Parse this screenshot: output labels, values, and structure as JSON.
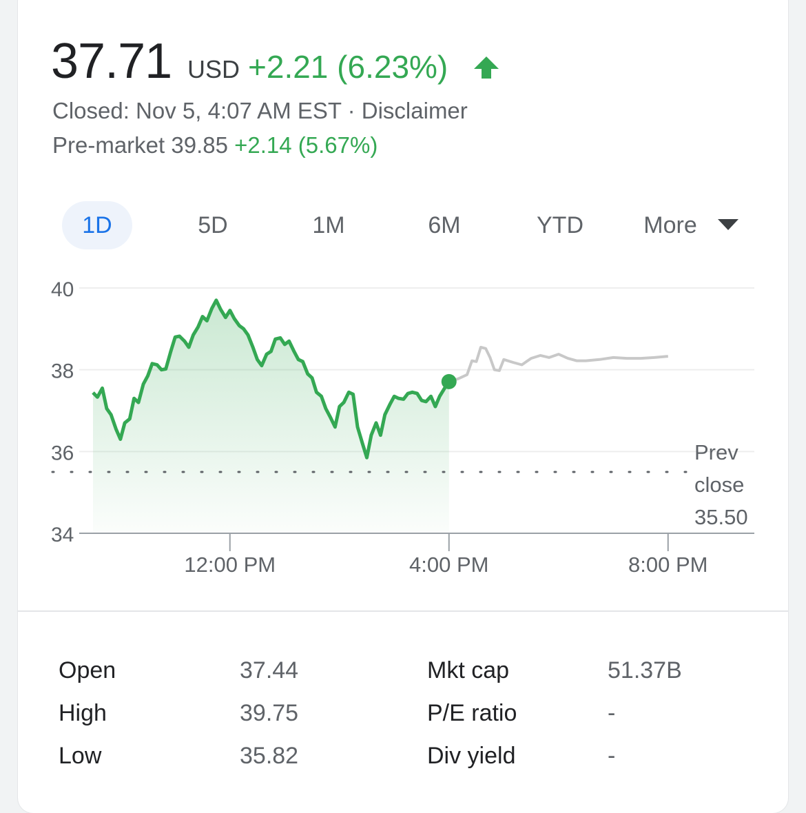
{
  "quote": {
    "price": "37.71",
    "currency": "USD",
    "change": "+2.21 (6.23%)",
    "direction_icon": "arrow-up-icon",
    "status_prefix": "Closed: Nov 5, 4:07 AM EST · ",
    "disclaimer": "Disclaimer",
    "premarket_label": "Pre-market 39.85 ",
    "premarket_change": "+2.14 (5.67%)"
  },
  "colors": {
    "up": "#34a853",
    "accent": "#1a73e8",
    "text": "#202124",
    "muted": "#5f6368",
    "afterhours_line": "#c8c8c8"
  },
  "range_tabs": [
    {
      "label": "1D",
      "active": true
    },
    {
      "label": "5D"
    },
    {
      "label": "1M"
    },
    {
      "label": "6M"
    },
    {
      "label": "YTD"
    },
    {
      "label": "More",
      "icon": "dropdown-triangle-icon"
    }
  ],
  "chart_data": {
    "type": "area",
    "ylim": [
      34,
      40
    ],
    "y_ticks": [
      "40",
      "38",
      "36",
      "34"
    ],
    "x_ticks": [
      {
        "label": "12:00 PM",
        "hour": 12
      },
      {
        "label": "4:00 PM",
        "hour": 16
      },
      {
        "label": "8:00 PM",
        "hour": 20
      }
    ],
    "prev_close": 35.5,
    "prev_close_label": [
      "Prev",
      "close",
      "35.50"
    ],
    "series": [
      {
        "session": "regular",
        "points": [
          [
            9.5,
            37.44
          ],
          [
            9.58,
            37.33
          ],
          [
            9.67,
            37.55
          ],
          [
            9.75,
            37.05
          ],
          [
            9.83,
            36.9
          ],
          [
            9.92,
            36.55
          ],
          [
            10.0,
            36.3
          ],
          [
            10.08,
            36.7
          ],
          [
            10.17,
            36.8
          ],
          [
            10.25,
            37.3
          ],
          [
            10.33,
            37.2
          ],
          [
            10.42,
            37.65
          ],
          [
            10.5,
            37.85
          ],
          [
            10.58,
            38.15
          ],
          [
            10.67,
            38.12
          ],
          [
            10.75,
            38.0
          ],
          [
            10.83,
            38.02
          ],
          [
            10.92,
            38.45
          ],
          [
            11.0,
            38.8
          ],
          [
            11.08,
            38.82
          ],
          [
            11.17,
            38.7
          ],
          [
            11.25,
            38.55
          ],
          [
            11.33,
            38.85
          ],
          [
            11.42,
            39.05
          ],
          [
            11.5,
            39.3
          ],
          [
            11.58,
            39.2
          ],
          [
            11.67,
            39.5
          ],
          [
            11.75,
            39.7
          ],
          [
            11.83,
            39.48
          ],
          [
            11.92,
            39.28
          ],
          [
            12.0,
            39.45
          ],
          [
            12.08,
            39.25
          ],
          [
            12.17,
            39.08
          ],
          [
            12.25,
            39.0
          ],
          [
            12.33,
            38.85
          ],
          [
            12.42,
            38.55
          ],
          [
            12.5,
            38.25
          ],
          [
            12.58,
            38.1
          ],
          [
            12.67,
            38.38
          ],
          [
            12.75,
            38.45
          ],
          [
            12.83,
            38.75
          ],
          [
            12.92,
            38.78
          ],
          [
            13.0,
            38.62
          ],
          [
            13.08,
            38.7
          ],
          [
            13.17,
            38.45
          ],
          [
            13.25,
            38.25
          ],
          [
            13.33,
            38.2
          ],
          [
            13.42,
            37.9
          ],
          [
            13.5,
            37.8
          ],
          [
            13.58,
            37.45
          ],
          [
            13.67,
            37.35
          ],
          [
            13.75,
            37.05
          ],
          [
            13.83,
            36.85
          ],
          [
            13.92,
            36.6
          ],
          [
            14.0,
            37.1
          ],
          [
            14.08,
            37.2
          ],
          [
            14.17,
            37.45
          ],
          [
            14.25,
            37.4
          ],
          [
            14.33,
            36.6
          ],
          [
            14.42,
            36.2
          ],
          [
            14.5,
            35.85
          ],
          [
            14.58,
            36.4
          ],
          [
            14.67,
            36.7
          ],
          [
            14.75,
            36.4
          ],
          [
            14.83,
            36.9
          ],
          [
            14.92,
            37.15
          ],
          [
            15.0,
            37.35
          ],
          [
            15.08,
            37.3
          ],
          [
            15.17,
            37.28
          ],
          [
            15.25,
            37.42
          ],
          [
            15.33,
            37.45
          ],
          [
            15.42,
            37.42
          ],
          [
            15.5,
            37.25
          ],
          [
            15.58,
            37.22
          ],
          [
            15.67,
            37.35
          ],
          [
            15.75,
            37.1
          ],
          [
            15.83,
            37.35
          ],
          [
            15.92,
            37.55
          ],
          [
            16.0,
            37.71
          ]
        ]
      },
      {
        "session": "after-hours",
        "points": [
          [
            16.0,
            37.71
          ],
          [
            16.17,
            37.78
          ],
          [
            16.33,
            37.88
          ],
          [
            16.42,
            38.22
          ],
          [
            16.5,
            38.2
          ],
          [
            16.58,
            38.55
          ],
          [
            16.67,
            38.52
          ],
          [
            16.75,
            38.3
          ],
          [
            16.83,
            38.0
          ],
          [
            16.92,
            37.98
          ],
          [
            17.0,
            38.25
          ],
          [
            17.17,
            38.18
          ],
          [
            17.33,
            38.12
          ],
          [
            17.5,
            38.28
          ],
          [
            17.67,
            38.35
          ],
          [
            17.83,
            38.3
          ],
          [
            18.0,
            38.38
          ],
          [
            18.17,
            38.28
          ],
          [
            18.33,
            38.22
          ],
          [
            18.5,
            38.22
          ],
          [
            18.75,
            38.25
          ],
          [
            19.0,
            38.3
          ],
          [
            19.25,
            38.28
          ],
          [
            19.5,
            38.28
          ],
          [
            19.75,
            38.3
          ],
          [
            20.0,
            38.33
          ]
        ]
      }
    ]
  },
  "stats": {
    "left": [
      {
        "label": "Open",
        "value": "37.44"
      },
      {
        "label": "High",
        "value": "39.75"
      },
      {
        "label": "Low",
        "value": "35.82"
      }
    ],
    "right": [
      {
        "label": "Mkt cap",
        "value": "51.37B"
      },
      {
        "label": "P/E ratio",
        "value": "-"
      },
      {
        "label": "Div yield",
        "value": "-"
      }
    ]
  }
}
